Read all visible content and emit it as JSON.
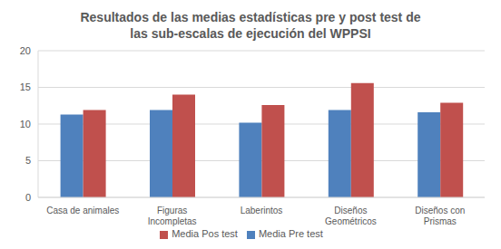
{
  "chart_data": {
    "type": "bar",
    "title": "Resultados de las medias estadísticas pre y post test de\nlas sub-escalas de ejecución del WPPSI",
    "categories": [
      "Casa de animales",
      "Figuras Incompletas",
      "Laberintos",
      "Diseños Geométricos",
      "Diseños con Prismas"
    ],
    "series": [
      {
        "name": "Media Pre test",
        "color": "#4f81bd",
        "values": [
          11.3,
          11.9,
          10.2,
          11.9,
          11.6
        ]
      },
      {
        "name": "Media Pos test",
        "color": "#c0504d",
        "values": [
          11.9,
          14.0,
          12.6,
          15.6,
          12.9
        ]
      }
    ],
    "ylim": [
      0,
      20
    ],
    "yticks": [
      0,
      5,
      10,
      15,
      20
    ],
    "grid": true,
    "legend": "bottom"
  }
}
